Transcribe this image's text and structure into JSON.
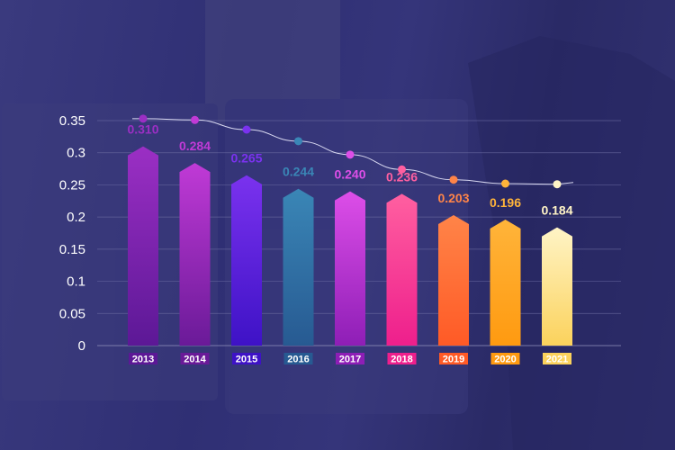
{
  "chart_data": {
    "type": "bar",
    "title": "",
    "xlabel": "",
    "ylabel": "",
    "ylim": [
      0,
      0.35
    ],
    "yticks": [
      "0",
      "0.05",
      "0.1",
      "0.15",
      "0.2",
      "0.25",
      "0.3",
      "0.35"
    ],
    "grid": true,
    "categories": [
      "2013",
      "2014",
      "2015",
      "2016",
      "2017",
      "2018",
      "2019",
      "2020",
      "2021"
    ],
    "values": [
      0.31,
      0.284,
      0.265,
      0.244,
      0.24,
      0.236,
      0.203,
      0.196,
      0.184
    ],
    "value_labels": [
      "0.310",
      "0.284",
      "0.265",
      "0.244",
      "0.240",
      "0.236",
      "0.203",
      "0.196",
      "0.184"
    ],
    "trend_line_values": [
      0.353,
      0.351,
      0.336,
      0.318,
      0.297,
      0.274,
      0.258,
      0.252,
      0.251
    ],
    "colors": [
      {
        "top": "#9b2fc4",
        "bottom": "#5c1896"
      },
      {
        "top": "#c03ad6",
        "bottom": "#6a1a98"
      },
      {
        "top": "#7a32ee",
        "bottom": "#3e12c6"
      },
      {
        "top": "#3a86b6",
        "bottom": "#275a92"
      },
      {
        "top": "#dd4ee8",
        "bottom": "#8e1eb6"
      },
      {
        "top": "#ff5fa0",
        "bottom": "#ee1f8c"
      },
      {
        "top": "#ff8448",
        "bottom": "#ff5a26"
      },
      {
        "top": "#ffb43a",
        "bottom": "#ff9a10"
      },
      {
        "top": "#fff4c6",
        "bottom": "#fbd25c"
      }
    ]
  }
}
